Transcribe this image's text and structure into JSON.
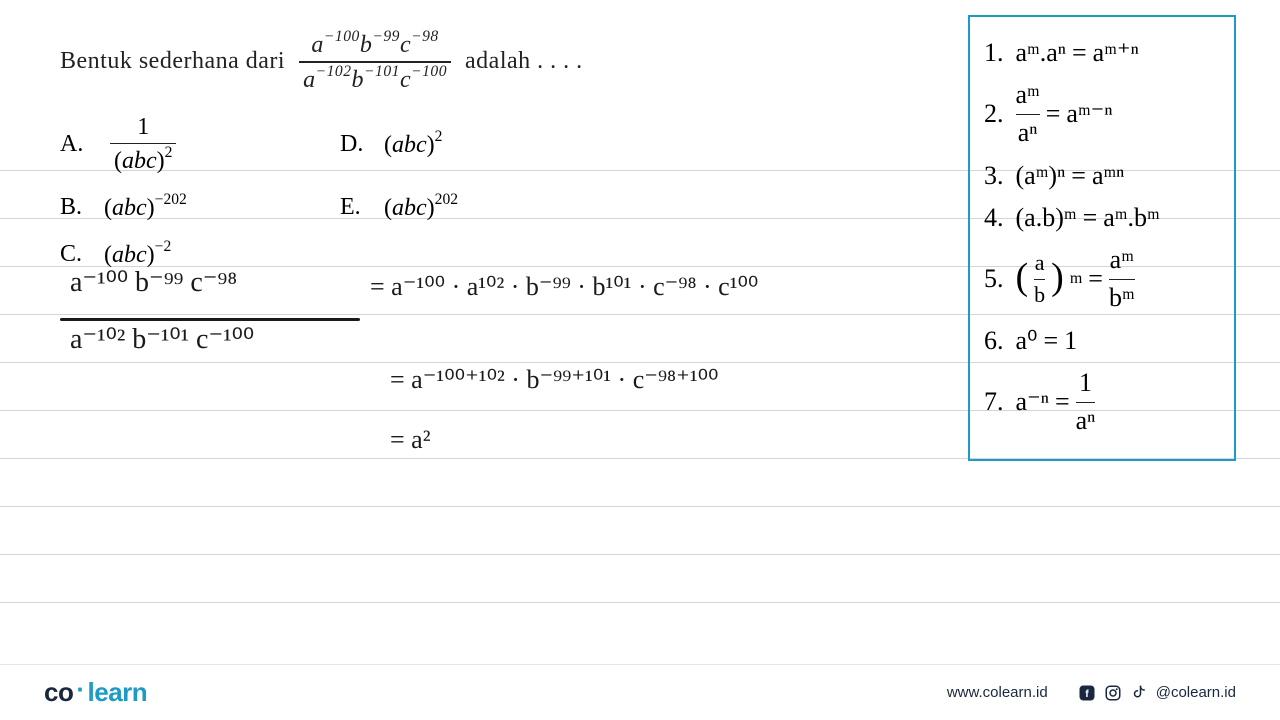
{
  "colors": {
    "accent": "#1e9ac6",
    "text": "#222222",
    "line": "#cfd6dd",
    "handwriting": "#1a1a1a",
    "logo_co": "#1a2740",
    "footer_text": "#1a2740"
  },
  "question": {
    "prefix": "Bentuk sederhana dari",
    "suffix": "adalah . . . .",
    "numerator_parts": [
      "a",
      "−100",
      "b",
      "−99",
      "c",
      "−98"
    ],
    "denominator_parts": [
      "a",
      "−102",
      "b",
      "−101",
      "c",
      "−100"
    ]
  },
  "options": {
    "A": {
      "label": "A.",
      "type": "fraction",
      "num": "1",
      "den_base": "(abc)",
      "den_exp": "2"
    },
    "B": {
      "label": "B.",
      "base": "(abc)",
      "exp": "−202"
    },
    "C": {
      "label": "C.",
      "base": "(abc)",
      "exp": "−2"
    },
    "D": {
      "label": "D.",
      "base": "(abc)",
      "exp": "2"
    },
    "E": {
      "label": "E.",
      "base": "(abc)",
      "exp": "202"
    }
  },
  "handwriting": {
    "frac_num": "a⁻¹⁰⁰  b⁻⁹⁹  c⁻⁹⁸",
    "frac_den": "a⁻¹⁰²  b⁻¹⁰¹  c⁻¹⁰⁰",
    "line1": "= a⁻¹⁰⁰ · a¹⁰² · b⁻⁹⁹ · b¹⁰¹ · c⁻⁹⁸ · c¹⁰⁰",
    "line2": "=  a⁻¹⁰⁰⁺¹⁰²  ·  b⁻⁹⁹⁺¹⁰¹  ·  c⁻⁹⁸⁺¹⁰⁰",
    "line3": "=   a²"
  },
  "rules": [
    {
      "n": "1.",
      "lhs": "aᵐ.aⁿ",
      "rhs": "aᵐ⁺ⁿ"
    },
    {
      "n": "2.",
      "type": "frac",
      "num": "aᵐ",
      "den": "aⁿ",
      "rhs": "aᵐ⁻ⁿ"
    },
    {
      "n": "3.",
      "lhs": "(aᵐ)ⁿ",
      "rhs": "aᵐⁿ"
    },
    {
      "n": "4.",
      "lhs": "(a.b)ᵐ",
      "rhs": "aᵐ.bᵐ"
    },
    {
      "n": "5.",
      "type": "frac_paren",
      "num": "a",
      "den": "b",
      "outer_exp": "m",
      "rhs_type": "frac",
      "rhs_num": "aᵐ",
      "rhs_den": "bᵐ"
    },
    {
      "n": "6.",
      "lhs": "a⁰",
      "rhs": "1"
    },
    {
      "n": "7.",
      "lhs": "a⁻ⁿ",
      "rhs_type": "frac",
      "rhs_num": "1",
      "rhs_den": "aⁿ"
    }
  ],
  "footer": {
    "logo_co": "co",
    "logo_learn": "learn",
    "url": "www.colearn.id",
    "handle": "@colearn.id"
  },
  "notebook": {
    "line_top_start": 172,
    "line_spacing": 48,
    "line_count": 10
  }
}
